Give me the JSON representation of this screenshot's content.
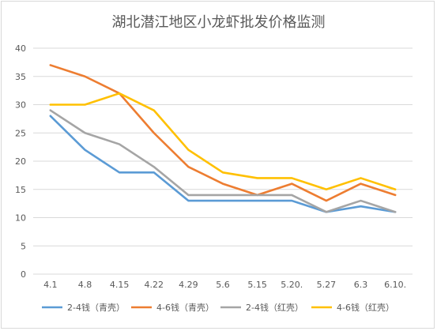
{
  "chart_data": {
    "type": "line",
    "title": "湖北潜江地区小龙虾批发价格监测",
    "xlabel": "",
    "ylabel": "",
    "categories": [
      "4.1",
      "4.8",
      "4.15",
      "4.22",
      "4.29",
      "5.6",
      "5.15",
      "5.20.",
      "5.27",
      "6.3",
      "6.10."
    ],
    "ylim": [
      0,
      40
    ],
    "yticks": [
      0,
      5,
      10,
      15,
      20,
      25,
      30,
      35,
      40
    ],
    "grid": true,
    "legend_position": "bottom",
    "series": [
      {
        "name": "2-4钱（青壳）",
        "color": "#5B9BD5",
        "values": [
          28,
          22,
          18,
          18,
          13,
          13,
          13,
          13,
          11,
          12,
          11
        ]
      },
      {
        "name": "4-6钱（青壳）",
        "color": "#ED7D31",
        "values": [
          37,
          35,
          32,
          25,
          19,
          16,
          14,
          16,
          13,
          16,
          14
        ]
      },
      {
        "name": "2-4钱（红壳）",
        "color": "#A5A5A5",
        "values": [
          29,
          25,
          23,
          19,
          14,
          14,
          14,
          14,
          11,
          13,
          11
        ]
      },
      {
        "name": "4-6钱（红壳）",
        "color": "#FFC000",
        "values": [
          30,
          30,
          32,
          29,
          22,
          18,
          17,
          17,
          15,
          17,
          15
        ]
      }
    ]
  }
}
